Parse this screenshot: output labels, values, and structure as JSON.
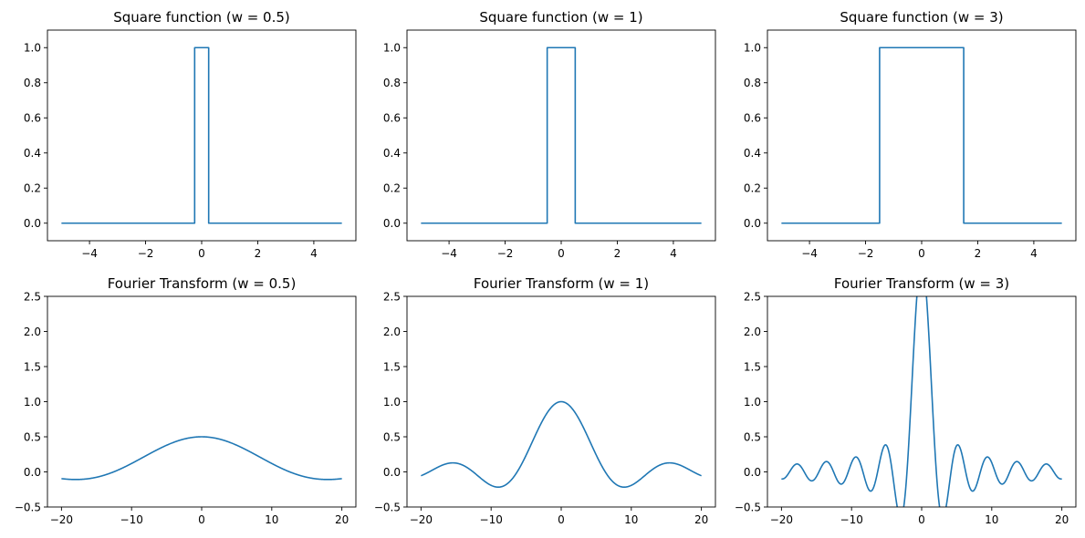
{
  "chart_data": [
    {
      "type": "line",
      "title": "Square function (w = 0.5)",
      "xlabel": "",
      "ylabel": "",
      "xlim": [
        -5.5,
        5.5
      ],
      "ylim": [
        -0.1,
        1.1
      ],
      "xticks": [
        -4,
        -2,
        0,
        2,
        4
      ],
      "xtick_labels": [
        "−4",
        "−2",
        "0",
        "2",
        "4"
      ],
      "yticks": [
        0.0,
        0.2,
        0.4,
        0.6,
        0.8,
        1.0
      ],
      "ytick_labels": [
        "0.0",
        "0.2",
        "0.4",
        "0.6",
        "0.8",
        "1.0"
      ],
      "grid": false,
      "color": "#1f77b4",
      "series": [
        {
          "x": [
            -5,
            -0.25,
            -0.25,
            0.25,
            0.25,
            5
          ],
          "y": [
            0,
            0,
            1,
            1,
            0,
            0
          ]
        }
      ]
    },
    {
      "type": "line",
      "title": "Square function (w = 1)",
      "xlabel": "",
      "ylabel": "",
      "xlim": [
        -5.5,
        5.5
      ],
      "ylim": [
        -0.1,
        1.1
      ],
      "xticks": [
        -4,
        -2,
        0,
        2,
        4
      ],
      "xtick_labels": [
        "−4",
        "−2",
        "0",
        "2",
        "4"
      ],
      "yticks": [
        0.0,
        0.2,
        0.4,
        0.6,
        0.8,
        1.0
      ],
      "ytick_labels": [
        "0.0",
        "0.2",
        "0.4",
        "0.6",
        "0.8",
        "1.0"
      ],
      "grid": false,
      "color": "#1f77b4",
      "series": [
        {
          "x": [
            -5,
            -0.5,
            -0.5,
            0.5,
            0.5,
            5
          ],
          "y": [
            0,
            0,
            1,
            1,
            0,
            0
          ]
        }
      ]
    },
    {
      "type": "line",
      "title": "Square function (w = 3)",
      "xlabel": "",
      "ylabel": "",
      "xlim": [
        -5.5,
        5.5
      ],
      "ylim": [
        -0.1,
        1.1
      ],
      "xticks": [
        -4,
        -2,
        0,
        2,
        4
      ],
      "xtick_labels": [
        "−4",
        "−2",
        "0",
        "2",
        "4"
      ],
      "yticks": [
        0.0,
        0.2,
        0.4,
        0.6,
        0.8,
        1.0
      ],
      "ytick_labels": [
        "0.0",
        "0.2",
        "0.4",
        "0.6",
        "0.8",
        "1.0"
      ],
      "grid": false,
      "color": "#1f77b4",
      "series": [
        {
          "x": [
            -5,
            -1.5,
            -1.5,
            1.5,
            1.5,
            5
          ],
          "y": [
            0,
            0,
            1,
            1,
            0,
            0
          ]
        }
      ]
    },
    {
      "type": "line",
      "title": "Fourier Transform (w = 0.5)",
      "xlabel": "",
      "ylabel": "",
      "xlim": [
        -22,
        22
      ],
      "ylim": [
        -0.5,
        2.5
      ],
      "xticks": [
        -20,
        -10,
        0,
        10,
        20
      ],
      "xtick_labels": [
        "−20",
        "−10",
        "0",
        "10",
        "20"
      ],
      "yticks": [
        -0.5,
        0.0,
        0.5,
        1.0,
        1.5,
        2.0,
        2.5
      ],
      "ytick_labels": [
        "−0.5",
        "0.0",
        "0.5",
        "1.0",
        "1.5",
        "2.0",
        "2.5"
      ],
      "grid": false,
      "color": "#1f77b4",
      "series": [
        {
          "x": [
            -20,
            -18,
            -16,
            -14,
            -12,
            -10,
            -8,
            -6,
            -4,
            -2,
            0,
            2,
            4,
            6,
            8,
            10,
            12,
            14,
            16,
            18,
            20
          ],
          "y": [
            -0.091,
            -0.109,
            -0.094,
            -0.047,
            0.023,
            0.096,
            0.189,
            0.314,
            0.409,
            0.479,
            0.5,
            0.479,
            0.409,
            0.314,
            0.189,
            0.096,
            0.023,
            -0.047,
            -0.094,
            -0.109,
            -0.091
          ]
        }
      ]
    },
    {
      "type": "line",
      "title": "Fourier Transform (w = 1)",
      "xlabel": "",
      "ylabel": "",
      "xlim": [
        -22,
        22
      ],
      "ylim": [
        -0.5,
        2.5
      ],
      "xticks": [
        -20,
        -10,
        0,
        10,
        20
      ],
      "xtick_labels": [
        "−20",
        "−10",
        "0",
        "10",
        "20"
      ],
      "yticks": [
        -0.5,
        0.0,
        0.5,
        1.0,
        1.5,
        2.0,
        2.5
      ],
      "ytick_labels": [
        "−0.5",
        "0.0",
        "0.5",
        "1.0",
        "1.5",
        "2.0",
        "2.5"
      ],
      "grid": false,
      "color": "#1f77b4",
      "series": [
        {
          "x": [
            -20,
            -18,
            -16,
            -15.4,
            -14,
            -12,
            -10,
            -9,
            -8,
            -6,
            -4,
            -2,
            0,
            2,
            4,
            6,
            8,
            9,
            10,
            12,
            14,
            15.4,
            16,
            18,
            20
          ],
          "y": [
            -0.054,
            0.046,
            0.124,
            0.128,
            0.089,
            -0.047,
            -0.192,
            -0.217,
            -0.189,
            0.047,
            0.455,
            0.841,
            1.0,
            0.841,
            0.455,
            0.047,
            -0.189,
            -0.217,
            -0.192,
            -0.047,
            0.089,
            0.128,
            0.124,
            0.046,
            -0.054
          ]
        }
      ]
    },
    {
      "type": "line",
      "title": "Fourier Transform (w = 3)",
      "xlabel": "",
      "ylabel": "",
      "xlim": [
        -22,
        22
      ],
      "ylim": [
        -0.5,
        2.5
      ],
      "xticks": [
        -20,
        -10,
        0,
        10,
        20
      ],
      "xtick_labels": [
        "−20",
        "−10",
        "0",
        "10",
        "20"
      ],
      "yticks": [
        -0.5,
        0.0,
        0.5,
        1.0,
        1.5,
        2.0,
        2.5
      ],
      "ytick_labels": [
        "−0.5",
        "0.0",
        "0.5",
        "1.0",
        "1.5",
        "2.0",
        "2.5"
      ],
      "grid": false,
      "color": "#1f77b4",
      "series": [
        {
          "x": [
            -20,
            -18,
            -16.8,
            -15.9,
            -14.7,
            -13.6,
            -12.6,
            -11.5,
            -10.5,
            -9.4,
            -8.4,
            -7.3,
            -6.3,
            -5.2,
            -4.2,
            -3.1,
            -2.1,
            0,
            2.1,
            3.1,
            4.2,
            5.2,
            6.3,
            7.3,
            8.4,
            9.4,
            10.5,
            11.5,
            12.6,
            13.6,
            14.7,
            15.9,
            16.8,
            18,
            20
          ],
          "y": [
            -0.1,
            0.11,
            0.0,
            -0.12,
            0.0,
            0.15,
            0.0,
            -0.17,
            0.0,
            0.21,
            0.0,
            -0.27,
            0.0,
            0.38,
            0.0,
            -0.64,
            0.0,
            3.0,
            0.0,
            -0.64,
            0.0,
            0.38,
            0.0,
            -0.27,
            0.0,
            0.21,
            0.0,
            -0.17,
            0.0,
            0.15,
            0.0,
            -0.12,
            0.0,
            0.11,
            -0.1
          ]
        }
      ]
    }
  ]
}
